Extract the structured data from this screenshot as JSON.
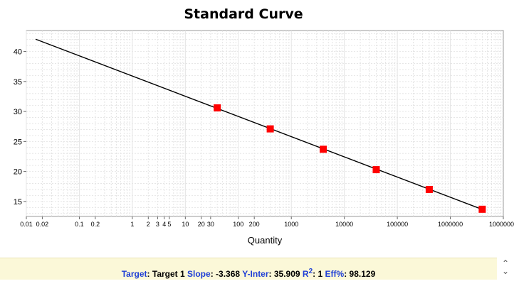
{
  "chart_data": {
    "type": "scatter",
    "title": "Standard Curve",
    "xlabel": "Quantity",
    "ylabel": "",
    "xscale": "log",
    "xlim": [
      0.01,
      10000000
    ],
    "ylim": [
      12.5,
      43.5
    ],
    "xticks": [
      {
        "v": 0.01,
        "label": "0.01"
      },
      {
        "v": 0.02,
        "label": "0.02"
      },
      {
        "v": 0.1,
        "label": "0.1"
      },
      {
        "v": 0.2,
        "label": "0.2"
      },
      {
        "v": 1,
        "label": "1"
      },
      {
        "v": 2,
        "label": "2"
      },
      {
        "v": 3,
        "label": "3"
      },
      {
        "v": 4,
        "label": "4"
      },
      {
        "v": 5,
        "label": "5"
      },
      {
        "v": 10,
        "label": "10"
      },
      {
        "v": 20,
        "label": "20"
      },
      {
        "v": 30,
        "label": "30"
      },
      {
        "v": 100,
        "label": "100"
      },
      {
        "v": 200,
        "label": "200"
      },
      {
        "v": 1000,
        "label": "1000"
      },
      {
        "v": 10000,
        "label": "10000"
      },
      {
        "v": 100000,
        "label": "100000"
      },
      {
        "v": 1000000,
        "label": "1000000"
      },
      {
        "v": 10000000,
        "label": "10000000"
      }
    ],
    "yticks": [
      15,
      20,
      25,
      30,
      35,
      40
    ],
    "grid": true,
    "points": [
      {
        "x": 40,
        "y": 30.6
      },
      {
        "x": 400,
        "y": 27.1
      },
      {
        "x": 4000,
        "y": 23.7
      },
      {
        "x": 40000,
        "y": 20.3
      },
      {
        "x": 400000,
        "y": 17.0
      },
      {
        "x": 4000000,
        "y": 13.7
      }
    ],
    "fit_line": {
      "x_start": 0.015,
      "x_end": 4000000,
      "slope": -3.368,
      "intercept": 35.909
    },
    "marker_color": "#ff0000",
    "line_color": "#000000"
  },
  "stats": {
    "target_key": "Target",
    "target_value": "Target 1",
    "slope_key": "Slope",
    "slope_value": "-3.368",
    "yinter_key": "Y-Inter",
    "yinter_value": "35.909",
    "r2_key": "R",
    "r2_sup": "2",
    "r2_value": "1",
    "eff_key": "Eff%",
    "eff_value": "98.129"
  }
}
